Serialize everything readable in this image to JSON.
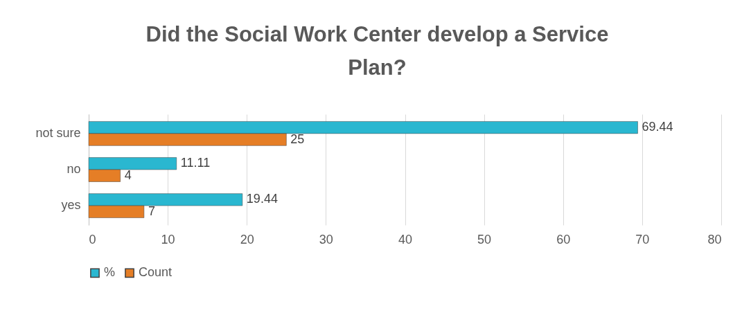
{
  "chart_data": {
    "type": "bar",
    "orientation": "horizontal",
    "title": "Did the Social Work Center develop a Service Plan?",
    "categories": [
      "not sure",
      "no",
      "yes"
    ],
    "series": [
      {
        "name": "%",
        "color": "#2ab7d0",
        "values": [
          69.44,
          11.11,
          19.44
        ]
      },
      {
        "name": "Count",
        "color": "#e57e26",
        "values": [
          25,
          4,
          7
        ]
      }
    ],
    "xlim": [
      0,
      80
    ],
    "xticks": [
      0,
      10,
      20,
      30,
      40,
      50,
      60,
      70,
      80
    ],
    "grid": "x",
    "legend": "bottom",
    "data_labels": true
  }
}
